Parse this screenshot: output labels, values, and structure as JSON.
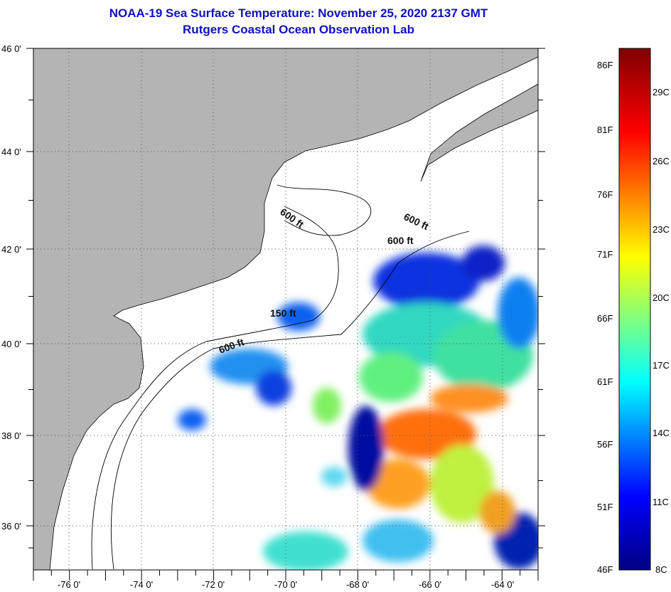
{
  "header": {
    "title": "NOAA-19 Sea Surface Temperature:  November 25, 2020 2137 GMT",
    "subtitle": "Rutgers Coastal Ocean Observation Lab"
  },
  "map": {
    "lon_ticks": [
      "-76 0'",
      "-74 0'",
      "-72 0'",
      "-70 0'",
      "-68 0'",
      "-66 0'",
      "-64 0'"
    ],
    "lat_ticks": [
      "46 0'",
      "44 0'",
      "42 0'",
      "40 0'",
      "38 0'",
      "36 0'"
    ],
    "contour_labels": [
      "600 ft",
      "600 ft",
      "600 ft",
      "150 ft",
      "600 ft"
    ],
    "colors": {
      "land": "#b4b4b4",
      "no_data": "#ffffff"
    }
  },
  "colorbar": {
    "fahrenheit": [
      "86F",
      "81F",
      "76F",
      "71F",
      "66F",
      "61F",
      "56F",
      "51F",
      "46F"
    ],
    "celsius": [
      "29C",
      "26C",
      "23C",
      "20C",
      "17C",
      "14C",
      "11C",
      "8C"
    ],
    "range_f": [
      46,
      88
    ],
    "colors": [
      "#000080",
      "#0000ff",
      "#00ffff",
      "#ffff00",
      "#ff0000",
      "#800000"
    ]
  }
}
